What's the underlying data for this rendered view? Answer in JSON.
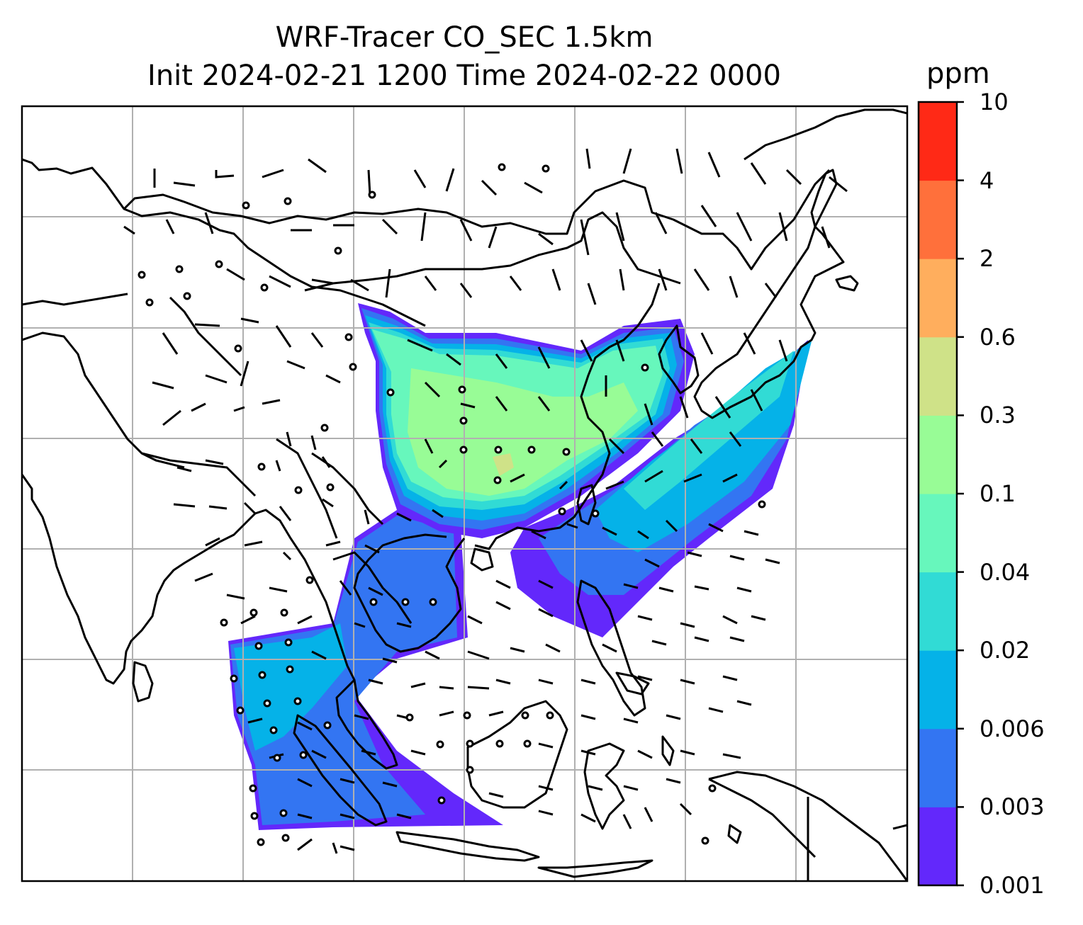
{
  "title": {
    "line1": "WRF-Tracer CO_SEC 1.5km",
    "line2": "Init 2024-02-21 1200 Time 2024-02-22 0000"
  },
  "colorbar": {
    "unit": "ppm",
    "ticks": [
      "0.001",
      "0.003",
      "0.006",
      "0.02",
      "0.04",
      "0.1",
      "0.3",
      "0.6",
      "2",
      "4",
      "10"
    ],
    "colors": [
      "#6328fb",
      "#3375f2",
      "#05b2e8",
      "#31dbd5",
      "#67f7bc",
      "#98fc96",
      "#cfe288",
      "#ffae5d",
      "#ff703b",
      "#ff2916"
    ]
  },
  "map": {
    "gridline_color": "#b0b0b0",
    "coastline_color": "#000000",
    "wind_barb_color": "#000000"
  }
}
